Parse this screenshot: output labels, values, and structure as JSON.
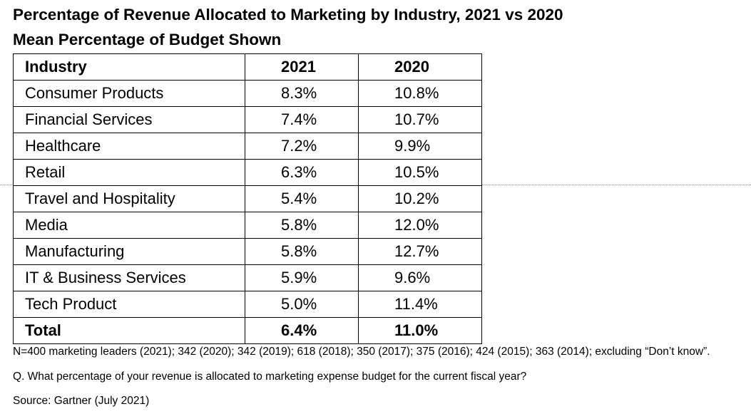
{
  "title": "Percentage of Revenue Allocated to Marketing by Industry, 2021 vs 2020",
  "subtitle": "Mean Percentage of Budget Shown",
  "chart_data": {
    "type": "table",
    "title": "Percentage of Revenue Allocated to Marketing by Industry, 2021 vs 2020",
    "subtitle": "Mean Percentage of Budget Shown",
    "columns": [
      "Industry",
      "2021",
      "2020"
    ],
    "rows": [
      {
        "industry": "Consumer Products",
        "y2021": "8.3%",
        "y2020": "10.8%"
      },
      {
        "industry": "Financial Services",
        "y2021": "7.4%",
        "y2020": "10.7%"
      },
      {
        "industry": "Healthcare",
        "y2021": "7.2%",
        "y2020": "9.9%"
      },
      {
        "industry": "Retail",
        "y2021": "6.3%",
        "y2020": "10.5%"
      },
      {
        "industry": "Travel and Hospitality",
        "y2021": "5.4%",
        "y2020": "10.2%"
      },
      {
        "industry": "Media",
        "y2021": "5.8%",
        "y2020": "12.0%"
      },
      {
        "industry": "Manufacturing",
        "y2021": "5.8%",
        "y2020": "12.7%"
      },
      {
        "industry": "IT & Business Services",
        "y2021": "5.9%",
        "y2020": "9.6%"
      },
      {
        "industry": "Tech Product",
        "y2021": "5.0%",
        "y2020": "11.4%"
      }
    ],
    "total": {
      "industry": "Total",
      "y2021": "6.4%",
      "y2020": "11.0%"
    }
  },
  "notes": {
    "footnote": "N=400 marketing leaders (2021); 342 (2020); 342 (2019); 618 (2018); 350 (2017); 375 (2016); 424 (2015); 363 (2014); excluding “Don’t know”.",
    "question": "Q. What percentage of your revenue is allocated to marketing expense budget for the current fiscal year?",
    "source": "Source: Gartner (July 2021)"
  }
}
